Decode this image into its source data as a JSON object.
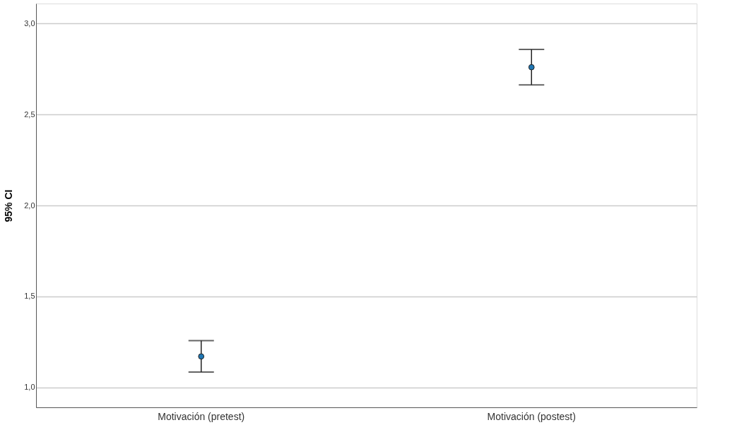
{
  "chart_data": {
    "type": "scatter",
    "ylabel": "95% CI",
    "categories": [
      "Motivación (pretest)",
      "Motivación (postest)"
    ],
    "series": [
      {
        "color": "#1f77b4",
        "values": [
          1.17,
          2.76
        ],
        "errors": [
          [
            1.084,
            1.257
          ],
          [
            2.663,
            2.858
          ]
        ]
      }
    ],
    "ylim": [
      0.89,
      3.11
    ],
    "yticks": [
      {
        "value": 1.0,
        "label": "1,0"
      },
      {
        "value": 1.5,
        "label": "1,5"
      },
      {
        "value": 2.0,
        "label": "2,0"
      },
      {
        "value": 2.5,
        "label": "2,5"
      },
      {
        "value": 3.0,
        "label": "3,0"
      }
    ],
    "grid": "y",
    "marker": "circle"
  }
}
